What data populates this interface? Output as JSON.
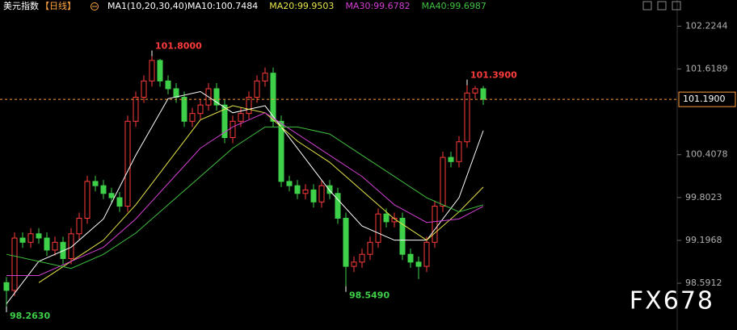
{
  "chart_data": {
    "type": "candlestick",
    "title": "美元指数",
    "period": "【日线】",
    "indicator": "MA1(10,20,30,40)",
    "open": [
      98.6,
      98.49,
      99.23,
      99.17,
      99.29,
      99.23,
      99.06,
      99.17,
      98.94,
      99.29,
      99.51,
      100.03,
      99.97,
      99.86,
      99.8,
      99.68,
      100.88,
      101.22,
      101.45,
      101.74,
      101.45,
      101.34,
      101.22,
      100.88,
      100.99,
      101.11,
      101.34,
      101.11,
      100.65,
      100.88,
      100.99,
      101.22,
      101.45,
      101.56,
      100.88,
      100.03,
      99.97,
      99.86,
      99.91,
      99.74,
      99.97,
      99.86,
      99.51,
      98.83,
      98.89,
      99.0,
      99.17,
      99.57,
      99.46,
      99.51,
      99.0,
      98.89,
      98.83,
      99.17,
      99.68,
      100.37,
      100.31,
      100.59,
      101.28,
      101.34
    ],
    "high": [
      98.68,
      99.31,
      99.31,
      99.37,
      99.37,
      99.31,
      99.25,
      99.25,
      99.37,
      99.59,
      100.11,
      100.11,
      100.05,
      99.94,
      99.88,
      100.96,
      101.3,
      101.53,
      101.8,
      101.76,
      101.53,
      101.42,
      101.3,
      101.07,
      101.19,
      101.42,
      101.42,
      101.19,
      100.96,
      101.07,
      101.3,
      101.53,
      101.64,
      101.64,
      100.96,
      100.11,
      100.05,
      99.99,
      99.99,
      100.05,
      100.05,
      99.94,
      99.59,
      98.97,
      99.08,
      99.25,
      99.65,
      99.65,
      99.59,
      99.59,
      99.08,
      98.97,
      99.25,
      99.76,
      100.45,
      100.45,
      100.67,
      101.39,
      101.38,
      101.38
    ],
    "low": [
      98.263,
      98.41,
      99.09,
      99.09,
      99.15,
      98.98,
      98.98,
      98.86,
      98.86,
      99.21,
      99.43,
      99.89,
      99.78,
      99.72,
      99.6,
      99.6,
      100.8,
      101.14,
      101.37,
      101.37,
      101.26,
      101.14,
      100.8,
      100.8,
      100.91,
      101.03,
      101.03,
      100.57,
      100.57,
      100.8,
      100.91,
      101.14,
      101.37,
      100.8,
      99.95,
      99.89,
      99.78,
      99.78,
      99.66,
      99.66,
      99.78,
      99.43,
      98.549,
      98.75,
      98.81,
      98.92,
      99.09,
      99.38,
      99.38,
      98.92,
      98.81,
      98.65,
      98.75,
      99.09,
      99.6,
      100.23,
      100.23,
      100.51,
      101.2,
      101.11
    ],
    "close": [
      98.49,
      99.23,
      99.17,
      99.29,
      99.23,
      99.06,
      99.17,
      98.94,
      99.29,
      99.51,
      100.03,
      99.97,
      99.86,
      99.8,
      99.68,
      100.88,
      101.22,
      101.45,
      101.74,
      101.45,
      101.34,
      101.22,
      100.88,
      100.99,
      101.11,
      101.34,
      101.11,
      100.65,
      100.88,
      100.99,
      101.22,
      101.45,
      101.56,
      100.88,
      100.03,
      99.97,
      99.86,
      99.91,
      99.74,
      99.97,
      99.86,
      99.51,
      98.83,
      98.89,
      99.0,
      99.17,
      99.57,
      99.46,
      99.51,
      99.0,
      98.89,
      98.83,
      99.17,
      99.68,
      100.37,
      100.31,
      100.59,
      101.28,
      101.34,
      101.19
    ],
    "up_color": "#ff3b3b",
    "down_color": "#3fd04a",
    "series": [
      {
        "name": "MA10:100.7484",
        "color": "#ffffff",
        "x": [
          0,
          4,
          8,
          12,
          16,
          20,
          24,
          28,
          32,
          36,
          40,
          44,
          48,
          52,
          56,
          59
        ],
        "values": [
          98.3,
          98.9,
          99.1,
          99.5,
          100.4,
          101.2,
          101.3,
          101.0,
          101.1,
          100.5,
          99.9,
          99.4,
          99.2,
          99.2,
          99.8,
          100.7484
        ]
      },
      {
        "name": "MA20:99.9503",
        "color": "#e6e64a",
        "x": [
          4,
          8,
          12,
          16,
          20,
          24,
          28,
          32,
          36,
          40,
          44,
          48,
          52,
          56,
          59
        ],
        "values": [
          98.6,
          98.9,
          99.2,
          99.7,
          100.3,
          100.9,
          101.1,
          101.0,
          100.6,
          100.3,
          99.9,
          99.5,
          99.2,
          99.6,
          99.9503
        ]
      },
      {
        "name": "MA30:99.6782",
        "color": "#d23fd2",
        "x": [
          0,
          4,
          8,
          12,
          16,
          20,
          24,
          28,
          32,
          36,
          40,
          44,
          48,
          52,
          56,
          59
        ],
        "values": [
          98.7,
          98.7,
          98.9,
          99.1,
          99.5,
          100.0,
          100.5,
          100.8,
          101.0,
          100.7,
          100.4,
          100.1,
          99.7,
          99.45,
          99.5,
          99.6782
        ]
      },
      {
        "name": "MA40:99.6987",
        "color": "#3fc03f",
        "x": [
          0,
          4,
          8,
          12,
          16,
          20,
          24,
          28,
          32,
          36,
          40,
          44,
          48,
          52,
          56,
          59
        ],
        "values": [
          99.0,
          98.9,
          98.8,
          99.0,
          99.3,
          99.7,
          100.1,
          100.5,
          100.8,
          100.8,
          100.7,
          100.4,
          100.1,
          99.8,
          99.6,
          99.6987
        ]
      }
    ],
    "annotations": [
      {
        "value": 101.8,
        "label": "101.8000",
        "field": "high",
        "color": "#ff3b3b"
      },
      {
        "value": 101.39,
        "label": "101.3900",
        "field": "high",
        "color": "#ff3b3b"
      },
      {
        "value": 98.549,
        "label": "98.5490",
        "field": "low",
        "color": "#3fd04a"
      },
      {
        "value": 98.263,
        "label": "98.2630",
        "field": "low",
        "color": "#3fd04a"
      }
    ],
    "last_price": {
      "value": 101.19,
      "label": "101.1900"
    },
    "ylim": [
      98.09,
      102.48
    ],
    "yticks": [
      102.2244,
      101.6189,
      100.4078,
      99.8023,
      99.1968,
      98.5912
    ],
    "watermark": "FX678"
  }
}
